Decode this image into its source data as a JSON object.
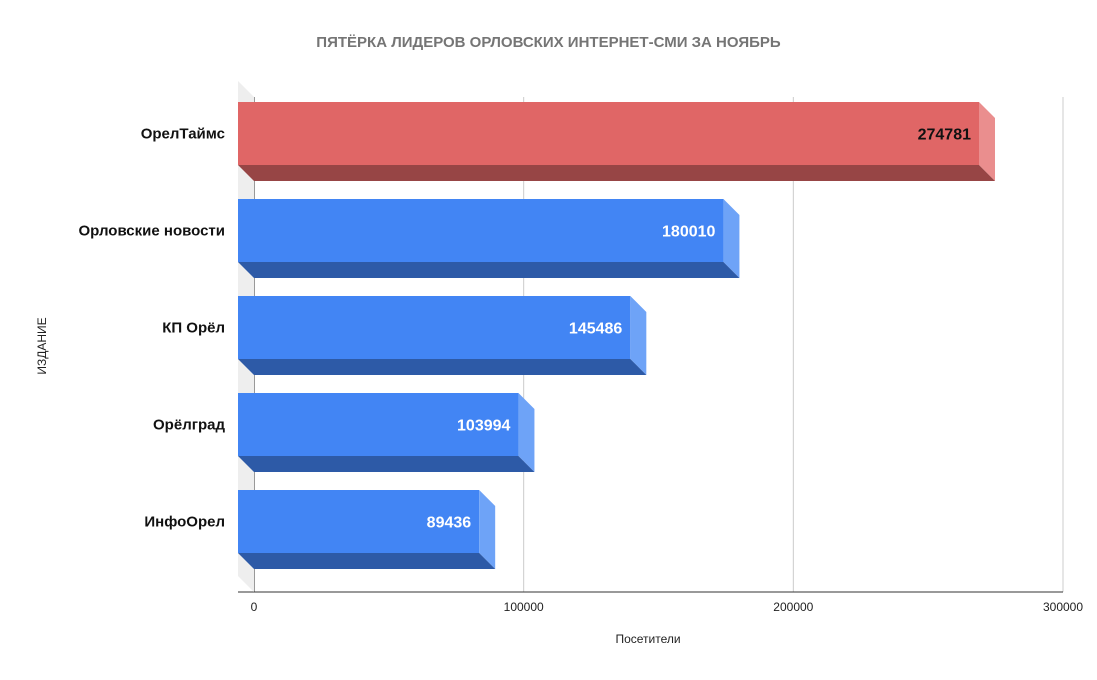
{
  "chart_data": {
    "type": "bar",
    "orientation": "horizontal",
    "style": "3d",
    "title": "ПЯТЁРКА ЛИДЕРОВ ОРЛОВСКИХ ИНТЕРНЕТ-СМИ ЗА НОЯБРЬ",
    "xlabel": "Посетители",
    "ylabel": "ИЗДАНИЕ",
    "categories": [
      "ОрелТаймс",
      "Орловские новости",
      "КП Орёл",
      "Орёлград",
      "ИнфоОрел"
    ],
    "values": [
      274781,
      180010,
      145486,
      103994,
      89436
    ],
    "data_labels": [
      "274781",
      "180010",
      "145486",
      "103994",
      "89436"
    ],
    "xlim": [
      0,
      300000
    ],
    "x_ticks": [
      "0",
      "100000",
      "200000",
      "300000"
    ],
    "x_tick_values": [
      0,
      100000,
      200000,
      300000
    ],
    "grid": true,
    "colors": {
      "highlight": "#e06666",
      "highlight_top": "#ea8e8e",
      "highlight_bottom": "#974545",
      "default": "#4285f4",
      "default_top": "#6ea3f7",
      "default_bottom": "#2d5aa7",
      "highlight_label": "#111111",
      "default_label": "#ffffff"
    },
    "highlight_index": 0
  }
}
